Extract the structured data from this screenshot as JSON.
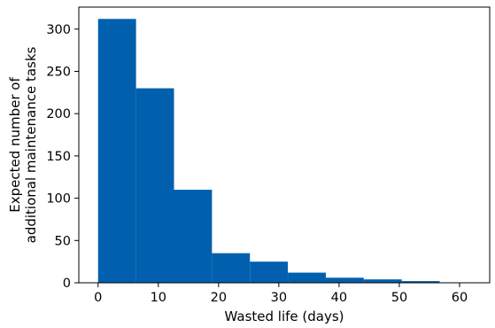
{
  "chart_data": {
    "type": "histogram",
    "xlabel": "Wasted life (days)",
    "ylabel_lines": [
      "Expected number of",
      "additional maintenance tasks"
    ],
    "bar_color": "#0060ad",
    "xlim": [
      -3.2,
      65
    ],
    "ylim": [
      0,
      326
    ],
    "xticks": [
      0,
      10,
      20,
      30,
      40,
      50,
      60
    ],
    "yticks": [
      0,
      50,
      100,
      150,
      200,
      250,
      300
    ],
    "bins": [
      {
        "x0": 0,
        "x1": 6.3,
        "value": 312
      },
      {
        "x0": 6.3,
        "x1": 12.6,
        "value": 230
      },
      {
        "x0": 12.6,
        "x1": 18.9,
        "value": 110
      },
      {
        "x0": 18.9,
        "x1": 25.2,
        "value": 35
      },
      {
        "x0": 25.2,
        "x1": 31.5,
        "value": 25
      },
      {
        "x0": 31.5,
        "x1": 37.8,
        "value": 12
      },
      {
        "x0": 37.8,
        "x1": 44.1,
        "value": 6
      },
      {
        "x0": 44.1,
        "x1": 50.4,
        "value": 4
      },
      {
        "x0": 50.4,
        "x1": 56.7,
        "value": 2
      }
    ]
  }
}
